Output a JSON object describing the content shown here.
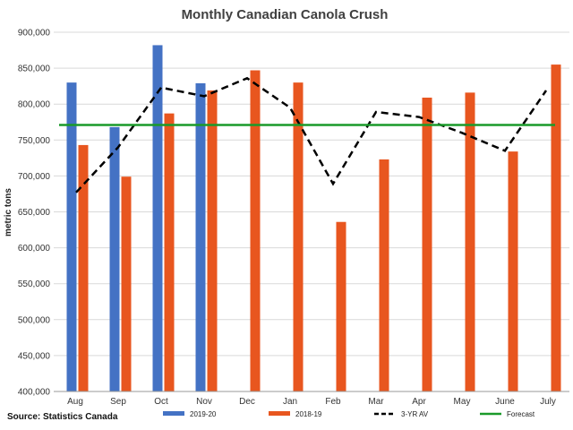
{
  "chart_data": {
    "type": "bar",
    "title": "Monthly Canadian Canola Crush",
    "xlabel": "",
    "ylabel": "metric tons",
    "ylim": [
      400000,
      900000
    ],
    "yticks": [
      "400,000",
      "450,000",
      "500,000",
      "550,000",
      "600,000",
      "650,000",
      "700,000",
      "750,000",
      "800,000",
      "850,000",
      "900,000"
    ],
    "ytick_values": [
      400000,
      450000,
      500000,
      550000,
      600000,
      650000,
      700000,
      750000,
      800000,
      850000,
      900000
    ],
    "categories": [
      "Aug",
      "Sep",
      "Oct",
      "Nov",
      "Dec",
      "Jan",
      "Feb",
      "Mar",
      "Apr",
      "May",
      "June",
      "July"
    ],
    "series": [
      {
        "name": "2019-20",
        "kind": "bar",
        "color": "#4472C4",
        "values": [
          830000,
          768000,
          882000,
          829000,
          null,
          null,
          null,
          null,
          null,
          null,
          null,
          null
        ]
      },
      {
        "name": "2018-19",
        "kind": "bar",
        "color": "#E8561F",
        "values": [
          743000,
          699000,
          787000,
          819000,
          847000,
          830000,
          636000,
          723000,
          809000,
          816000,
          734000,
          855000
        ]
      },
      {
        "name": "3-YR AV",
        "kind": "line",
        "style": "dashed",
        "color": "#000000",
        "values": [
          677000,
          740000,
          823000,
          811000,
          836000,
          795000,
          689000,
          789000,
          782000,
          760000,
          735000,
          819000
        ]
      },
      {
        "name": "Forecast",
        "kind": "line",
        "style": "solid",
        "color": "#1A9A2A",
        "values": [
          771000,
          771000,
          771000,
          771000,
          771000,
          771000,
          771000,
          771000,
          771000,
          771000,
          771000,
          771000
        ]
      }
    ],
    "grid": true,
    "legend_position": "bottom"
  },
  "source": "Source: Statistics Canada"
}
